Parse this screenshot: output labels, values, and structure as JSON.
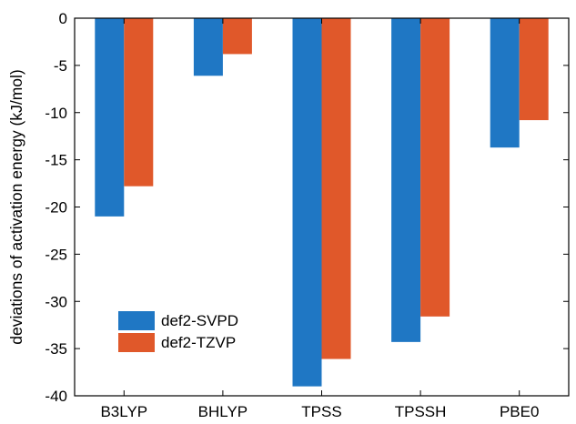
{
  "chart_data": {
    "type": "bar",
    "title": "",
    "xlabel": "",
    "ylabel": "deviations of activation energy (kJ/mol)",
    "categories": [
      "B3LYP",
      "BHLYP",
      "TPSS",
      "TPSSH",
      "PBE0"
    ],
    "ylim": [
      -40,
      0
    ],
    "yticks": [
      0,
      -5,
      -10,
      -15,
      -20,
      -25,
      -30,
      -35,
      -40
    ],
    "grid": false,
    "legend_position": "lower-left",
    "series": [
      {
        "name": "def2-SVPD",
        "color": "#1f77c4",
        "values": [
          -21.0,
          -6.1,
          -39.0,
          -34.3,
          -13.7
        ]
      },
      {
        "name": "def2-TZVP",
        "color": "#e0582a",
        "values": [
          -17.8,
          -3.8,
          -36.1,
          -31.6,
          -10.8
        ]
      }
    ]
  }
}
